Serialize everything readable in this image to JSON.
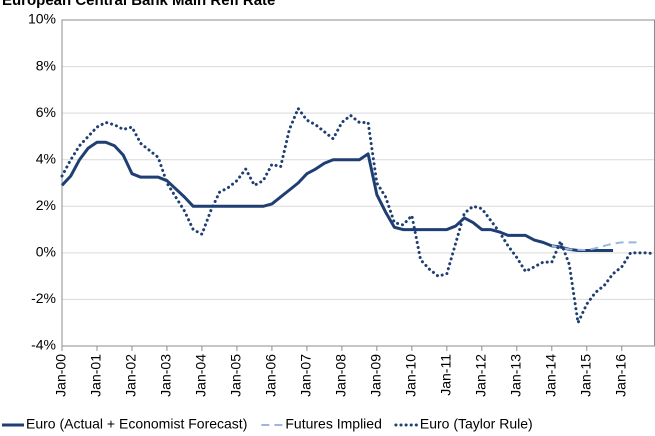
{
  "chart_data": {
    "type": "line",
    "title": "European Central Bank Main Refi Rate",
    "xlim": [
      2000,
      2016.95
    ],
    "xticks": [
      {
        "value": 2000,
        "label": "Jan-00"
      },
      {
        "value": 2001,
        "label": "Jan-01"
      },
      {
        "value": 2002,
        "label": "Jan-02"
      },
      {
        "value": 2003,
        "label": "Jan-03"
      },
      {
        "value": 2004,
        "label": "Jan-04"
      },
      {
        "value": 2005,
        "label": "Jan-05"
      },
      {
        "value": 2006,
        "label": "Jan-06"
      },
      {
        "value": 2007,
        "label": "Jan-07"
      },
      {
        "value": 2008,
        "label": "Jan-08"
      },
      {
        "value": 2009,
        "label": "Jan-09"
      },
      {
        "value": 2010,
        "label": "Jan-10"
      },
      {
        "value": 2011,
        "label": "Jan-11"
      },
      {
        "value": 2012,
        "label": "Jan-12"
      },
      {
        "value": 2013,
        "label": "Jan-13"
      },
      {
        "value": 2014,
        "label": "Jan-14"
      },
      {
        "value": 2015,
        "label": "Jan-15"
      },
      {
        "value": 2016,
        "label": "Jan-16"
      }
    ],
    "ylim": [
      -4,
      10
    ],
    "yticks": [
      {
        "value": -4,
        "label": "-4%"
      },
      {
        "value": -2,
        "label": "-2%"
      },
      {
        "value": 0,
        "label": "0%"
      },
      {
        "value": 2,
        "label": "2%"
      },
      {
        "value": 4,
        "label": "4%"
      },
      {
        "value": 6,
        "label": "6%"
      },
      {
        "value": 8,
        "label": "8%"
      },
      {
        "value": 10,
        "label": "10%"
      }
    ],
    "grid": true,
    "legend": "bottom",
    "series": [
      {
        "name": "Euro (Actual + Economist Forecast)",
        "color": "#1f3f73",
        "style": "solid",
        "x": [
          2000,
          2000.25,
          2000.5,
          2000.75,
          2001,
          2001.25,
          2001.5,
          2001.75,
          2002,
          2002.25,
          2002.5,
          2002.75,
          2003,
          2003.25,
          2003.5,
          2003.75,
          2004,
          2004.5,
          2005,
          2005.5,
          2005.75,
          2006,
          2006.25,
          2006.5,
          2006.75,
          2007,
          2007.25,
          2007.5,
          2007.75,
          2008,
          2008.25,
          2008.5,
          2008.75,
          2009,
          2009.25,
          2009.5,
          2009.75,
          2010,
          2010.5,
          2011,
          2011.25,
          2011.5,
          2011.75,
          2012,
          2012.25,
          2012.5,
          2012.75,
          2013,
          2013.25,
          2013.5,
          2013.75,
          2014,
          2014.25,
          2014.5,
          2014.75,
          2015,
          2015.25,
          2015.5,
          2015.75
        ],
        "values": [
          2.9,
          3.3,
          4.0,
          4.5,
          4.75,
          4.75,
          4.6,
          4.2,
          3.4,
          3.25,
          3.25,
          3.25,
          3.1,
          2.75,
          2.4,
          2.0,
          2.0,
          2.0,
          2.0,
          2.0,
          2.0,
          2.1,
          2.4,
          2.7,
          3.0,
          3.4,
          3.6,
          3.85,
          4.0,
          4.0,
          4.0,
          4.0,
          4.25,
          2.5,
          1.75,
          1.1,
          1.0,
          1.0,
          1.0,
          1.0,
          1.15,
          1.5,
          1.3,
          1.0,
          1.0,
          0.9,
          0.75,
          0.75,
          0.75,
          0.55,
          0.45,
          0.3,
          0.25,
          0.15,
          0.1,
          0.1,
          0.1,
          0.1,
          0.1
        ]
      },
      {
        "name": "Futures Implied",
        "color": "#9bb7dd",
        "style": "dashed",
        "x": [
          2014,
          2014.5,
          2015,
          2015.25,
          2015.5,
          2015.75,
          2016,
          2016.5
        ],
        "values": [
          0.3,
          0.15,
          0.12,
          0.2,
          0.3,
          0.4,
          0.45,
          0.45
        ]
      },
      {
        "name": "Euro (Taylor Rule)",
        "color": "#1f3f73",
        "style": "dotted",
        "x": [
          2000,
          2000.25,
          2000.5,
          2000.75,
          2001,
          2001.25,
          2001.5,
          2001.75,
          2002,
          2002.25,
          2002.5,
          2002.75,
          2003,
          2003.25,
          2003.5,
          2003.75,
          2004,
          2004.25,
          2004.5,
          2004.75,
          2005,
          2005.25,
          2005.5,
          2005.75,
          2006,
          2006.25,
          2006.5,
          2006.75,
          2007,
          2007.25,
          2007.5,
          2007.75,
          2008,
          2008.25,
          2008.5,
          2008.75,
          2009,
          2009.25,
          2009.5,
          2009.75,
          2010,
          2010.25,
          2010.5,
          2010.75,
          2011,
          2011.25,
          2011.5,
          2011.75,
          2012,
          2012.25,
          2012.5,
          2012.75,
          2013,
          2013.25,
          2013.5,
          2013.75,
          2014,
          2014.25,
          2014.5,
          2014.75,
          2015,
          2015.25,
          2015.5,
          2015.75,
          2016,
          2016.25,
          2016.5,
          2016.75,
          2016.95
        ],
        "values": [
          3.3,
          4.0,
          4.6,
          5.0,
          5.4,
          5.6,
          5.5,
          5.3,
          5.4,
          4.7,
          4.4,
          4.1,
          3.0,
          2.4,
          1.8,
          1.0,
          0.8,
          1.8,
          2.6,
          2.8,
          3.1,
          3.6,
          2.9,
          3.1,
          3.8,
          3.7,
          5.3,
          6.2,
          5.7,
          5.5,
          5.2,
          4.9,
          5.6,
          5.9,
          5.6,
          5.6,
          3.0,
          2.4,
          1.3,
          1.2,
          1.6,
          -0.3,
          -0.7,
          -1.0,
          -0.9,
          0.4,
          1.7,
          2.0,
          1.9,
          1.4,
          0.9,
          0.3,
          -0.2,
          -0.8,
          -0.6,
          -0.4,
          -0.4,
          0.5,
          -0.5,
          -3.0,
          -2.2,
          -1.7,
          -1.4,
          -0.9,
          -0.6,
          0.0,
          0.0,
          0.0,
          -0.05
        ]
      }
    ]
  }
}
